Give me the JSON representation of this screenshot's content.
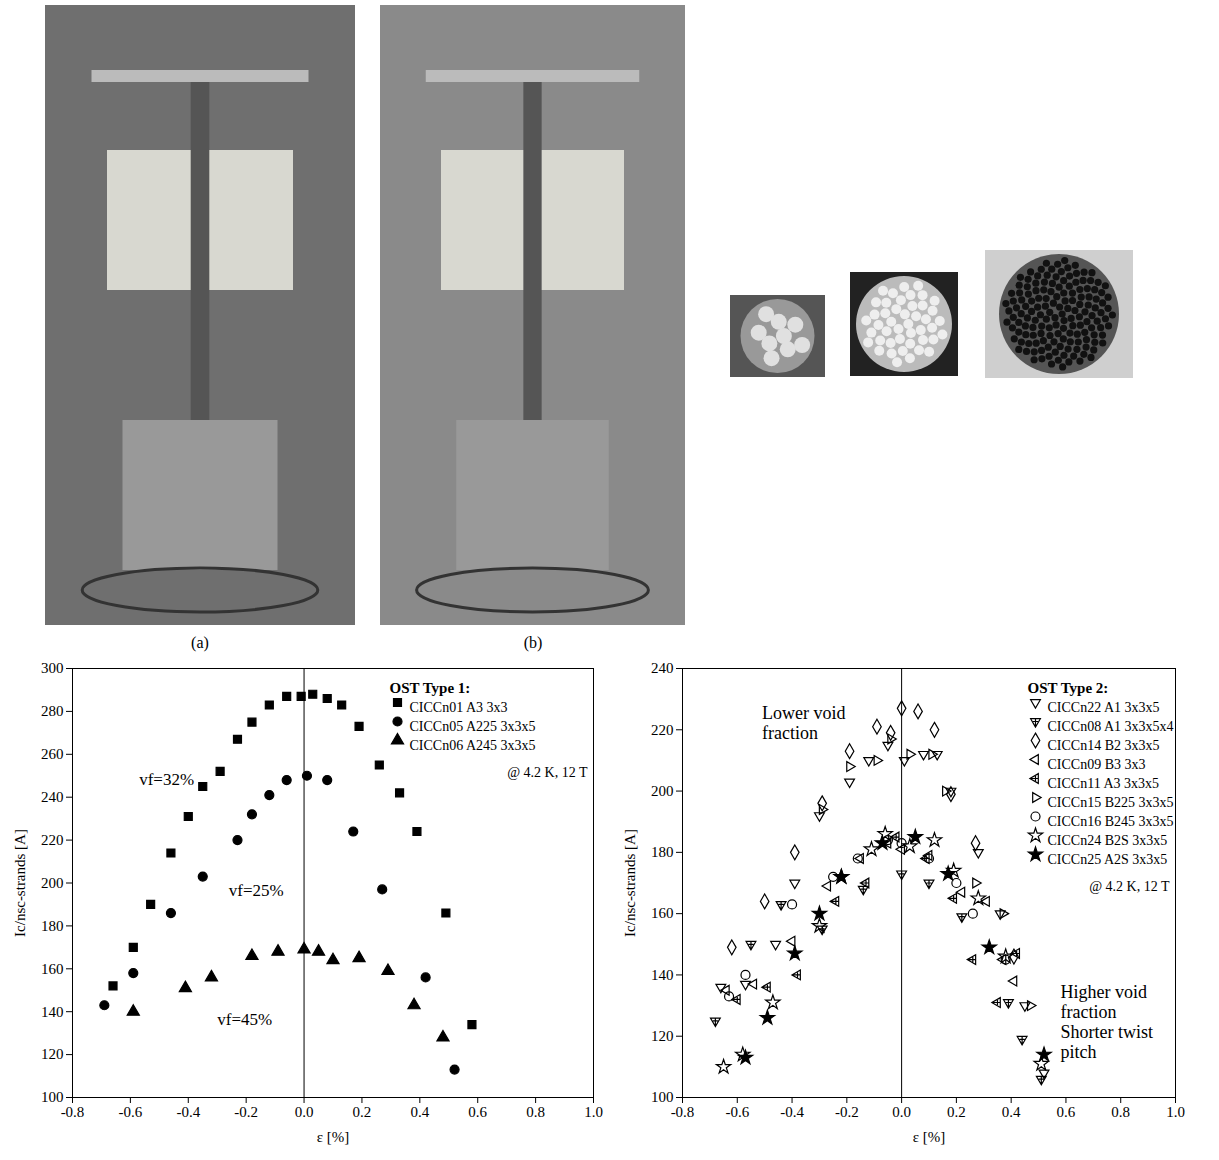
{
  "figure": {
    "panel_labels": [
      "(a)",
      "(b)"
    ]
  },
  "chart_data": [
    {
      "type": "scatter",
      "x_label": "ε [%]",
      "y_label": "Ic/nsc-strands [A]",
      "xlim": [
        -0.8,
        1.0
      ],
      "ylim": [
        100,
        300
      ],
      "xticks": [
        -0.8,
        -0.6,
        -0.4,
        -0.2,
        {
          "value": 0,
          "label": "0.0"
        },
        0.2,
        0.4,
        0.6,
        0.8,
        {
          "value": 1,
          "label": "1.0"
        }
      ],
      "yticks": [
        100,
        120,
        140,
        160,
        180,
        200,
        220,
        240,
        260,
        280,
        300
      ],
      "vlines": [
        0
      ],
      "legend": "top-right",
      "legend_title": "OST Type 1:",
      "legend_note": "@ 4.2 K, 12 T",
      "annotations": [
        {
          "text": "vf=32%",
          "x": -0.38,
          "y": 252,
          "anchor": "end"
        },
        {
          "text": "vf=25%",
          "x": -0.26,
          "y": 200,
          "anchor": "start"
        },
        {
          "text": "vf=45%",
          "x": -0.3,
          "y": 140,
          "anchor": "start"
        }
      ],
      "series": [
        {
          "name": "CICCn01 A3 3x3",
          "color": "#000000",
          "marker": "square",
          "x": [
            -0.66,
            -0.59,
            -0.53,
            -0.46,
            -0.4,
            -0.35,
            -0.29,
            -0.23,
            -0.18,
            -0.12,
            -0.06,
            -0.01,
            0.03,
            0.08,
            0.13,
            0.19,
            0.26,
            0.33,
            0.39,
            0.49,
            0.58
          ],
          "values": [
            152,
            170,
            190,
            214,
            231,
            245,
            252,
            267,
            275,
            283,
            287,
            287,
            288,
            286,
            283,
            273,
            255,
            242,
            224,
            186,
            134
          ]
        },
        {
          "name": "CICCn05 A225 3x3x5",
          "color": "#000000",
          "marker": "circle",
          "x": [
            -0.69,
            -0.59,
            -0.46,
            -0.35,
            -0.23,
            -0.18,
            -0.12,
            -0.06,
            0.01,
            0.08,
            0.17,
            0.27,
            0.42,
            0.52
          ],
          "values": [
            143,
            158,
            186,
            203,
            220,
            232,
            241,
            248,
            250,
            248,
            224,
            197,
            156,
            113
          ]
        },
        {
          "name": "CICCn06 A245 3x3x5",
          "color": "#000000",
          "marker": "triangle",
          "x": [
            -0.59,
            -0.41,
            -0.32,
            -0.18,
            -0.09,
            0.0,
            0.05,
            0.1,
            0.19,
            0.29,
            0.38,
            0.48
          ],
          "values": [
            140,
            151,
            156,
            166,
            168,
            169,
            168,
            164,
            165,
            159,
            143,
            128
          ]
        }
      ]
    },
    {
      "type": "scatter",
      "x_label": "ε [%]",
      "y_label": "Ic/nsc-strands [A]",
      "xlim": [
        -0.8,
        1.0
      ],
      "ylim": [
        100,
        240
      ],
      "xticks": [
        -0.8,
        -0.6,
        -0.4,
        -0.2,
        {
          "value": 0,
          "label": "0.0"
        },
        0.2,
        0.4,
        0.6,
        0.8,
        {
          "value": 1,
          "label": "1.0"
        }
      ],
      "yticks": [
        100,
        120,
        140,
        160,
        180,
        200,
        220,
        240
      ],
      "vlines": [
        0
      ],
      "legend": "top-right",
      "legend_title": "OST Type 2:",
      "legend_note": "@ 4.2 K, 12 T",
      "annotations": [
        {
          "text": "Lower void\nfraction",
          "x": -0.51,
          "y": 228,
          "anchor": "start"
        },
        {
          "text": "Higher void\nfraction\nShorter twist\npitch",
          "x": 0.58,
          "y": 137,
          "anchor": "start"
        }
      ],
      "series": [
        {
          "name": "CICCn22 A1 3x3x5",
          "color": "#000000",
          "marker": "triangle-down-open",
          "x": [
            -0.66,
            -0.57,
            -0.46,
            -0.39,
            -0.3,
            -0.19,
            -0.12,
            -0.05,
            0.01,
            0.08,
            0.13,
            0.18,
            0.28,
            0.36,
            0.45,
            0.52
          ],
          "values": [
            136,
            137,
            150,
            170,
            192,
            203,
            210,
            215,
            210,
            212,
            212,
            200,
            180,
            160,
            130,
            108
          ]
        },
        {
          "name": "CICCn08 A1 3x3x5x4",
          "color": "#000000",
          "marker": "triangle-down-cross-open",
          "x": [
            -0.68,
            -0.55,
            -0.44,
            -0.29,
            -0.14,
            0.0,
            0.1,
            0.22,
            0.39,
            0.44,
            0.51
          ],
          "values": [
            125,
            150,
            163,
            155,
            168,
            173,
            170,
            159,
            131,
            119,
            106
          ]
        },
        {
          "name": "CICCn14 B2 3x3x5",
          "color": "#000000",
          "marker": "diamond-open",
          "x": [
            -0.62,
            -0.5,
            -0.39,
            -0.29,
            -0.19,
            -0.09,
            -0.04,
            0.0,
            0.06,
            0.12,
            0.18,
            0.27,
            0.41
          ],
          "values": [
            149,
            164,
            180,
            196,
            213,
            221,
            219,
            227,
            226,
            220,
            199,
            183,
            146
          ]
        },
        {
          "name": "CICCn09 B3 3x3",
          "color": "#000000",
          "marker": "triangle-left-open",
          "x": [
            -0.64,
            -0.54,
            -0.4,
            -0.27,
            -0.15,
            -0.05,
            0.0,
            0.1,
            0.22,
            0.31,
            0.37,
            0.41
          ],
          "values": [
            135,
            137,
            151,
            169,
            178,
            183,
            181,
            179,
            167,
            164,
            145,
            138
          ]
        },
        {
          "name": "CICCn11 A3 3x3x5",
          "color": "#000000",
          "marker": "triangle-left-cross-open",
          "x": [
            -0.6,
            -0.49,
            -0.38,
            -0.24,
            -0.13,
            -0.02,
            0.09,
            0.19,
            0.26,
            0.35,
            0.42
          ],
          "values": [
            132,
            136,
            140,
            164,
            170,
            185,
            178,
            165,
            145,
            131,
            147
          ]
        },
        {
          "name": "CICCn15 B225 3x3x5",
          "color": "#000000",
          "marker": "triangle-right-open",
          "x": [
            -0.29,
            -0.19,
            -0.09,
            -0.04,
            0.03,
            0.11,
            0.16,
            0.27,
            0.37,
            0.47
          ],
          "values": [
            194,
            208,
            210,
            217,
            212,
            212,
            200,
            170,
            160,
            130
          ]
        },
        {
          "name": "CICCn16 B245 3x3x5",
          "color": "#000000",
          "marker": "circle-open",
          "x": [
            -0.63,
            -0.57,
            -0.4,
            -0.25,
            -0.16,
            -0.05,
            0.0,
            0.1,
            0.2,
            0.26,
            0.38
          ],
          "values": [
            133,
            140,
            163,
            172,
            178,
            184,
            183,
            178,
            170,
            160,
            145
          ]
        },
        {
          "name": "CICCn24 B2S 3x3x5",
          "color": "#000000",
          "marker": "star-open",
          "x": [
            -0.65,
            -0.58,
            -0.47,
            -0.3,
            -0.22,
            -0.11,
            -0.06,
            0.03,
            0.12,
            0.19,
            0.28,
            0.38,
            0.51
          ],
          "values": [
            110,
            114,
            131,
            156,
            172,
            181,
            186,
            182,
            184,
            174,
            165,
            146,
            111
          ]
        },
        {
          "name": "CICCn25 A2S 3x3x5",
          "color": "#000000",
          "marker": "star",
          "x": [
            -0.57,
            -0.49,
            -0.39,
            -0.3,
            -0.22,
            -0.07,
            0.05,
            0.17,
            0.32,
            0.52
          ],
          "values": [
            113,
            126,
            147,
            160,
            172,
            183,
            185,
            173,
            149,
            114
          ]
        }
      ]
    }
  ]
}
